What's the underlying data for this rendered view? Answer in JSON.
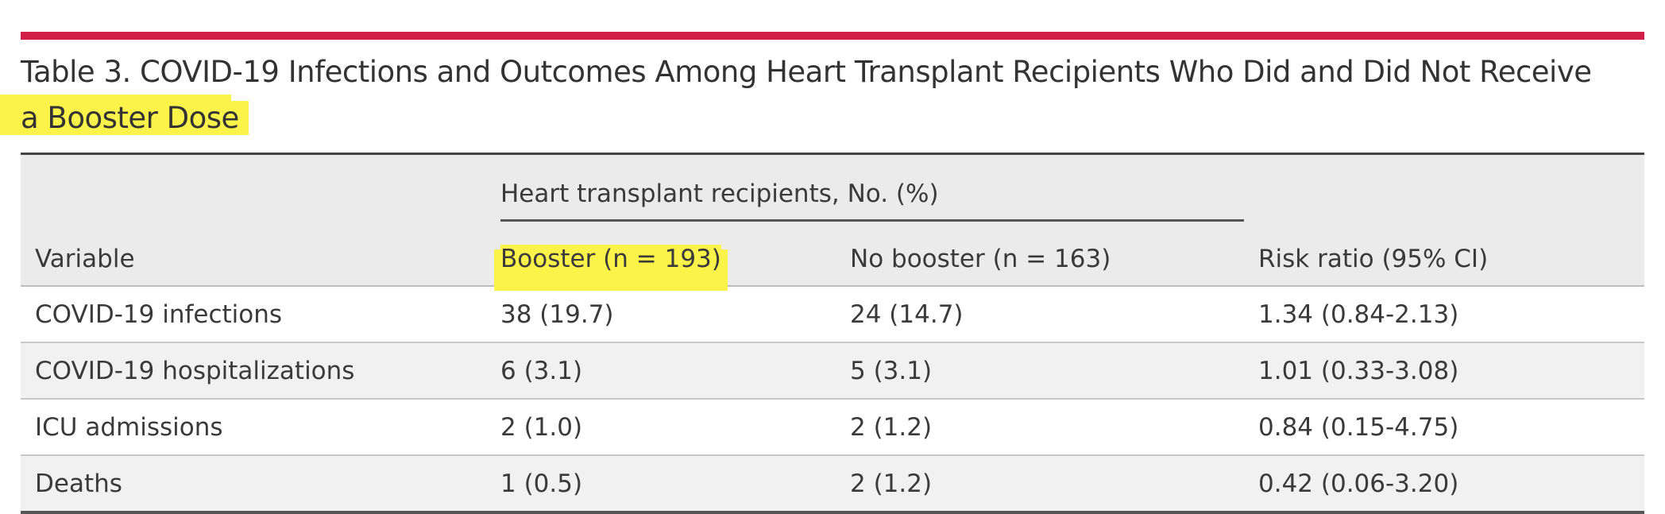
{
  "table": {
    "caption_main": "Table 3. COVID-19 Infections and Outcomes Among Heart Transplant Recipients Who Did and Did Not Receive",
    "caption_tail": "a Booster Dose",
    "spanner": "Heart transplant recipients, No. (%)",
    "columns": [
      "Variable",
      "Booster (n = 193)",
      "No booster (n = 163)",
      "Risk ratio (95% CI)"
    ],
    "rows": [
      [
        "COVID-19 infections",
        "38 (19.7)",
        "24 (14.7)",
        "1.34 (0.84-2.13)"
      ],
      [
        "COVID-19 hospitalizations",
        "6 (3.1)",
        "5 (3.1)",
        "1.01 (0.33-3.08)"
      ],
      [
        "ICU admissions",
        "2 (1.0)",
        "2 (1.2)",
        "0.84 (0.15-4.75)"
      ],
      [
        "Deaths",
        "1 (0.5)",
        "2 (1.2)",
        "0.42 (0.06-3.20)"
      ]
    ]
  },
  "colors": {
    "accent_rule": "#d11f47",
    "highlight": "#fbf34a"
  }
}
